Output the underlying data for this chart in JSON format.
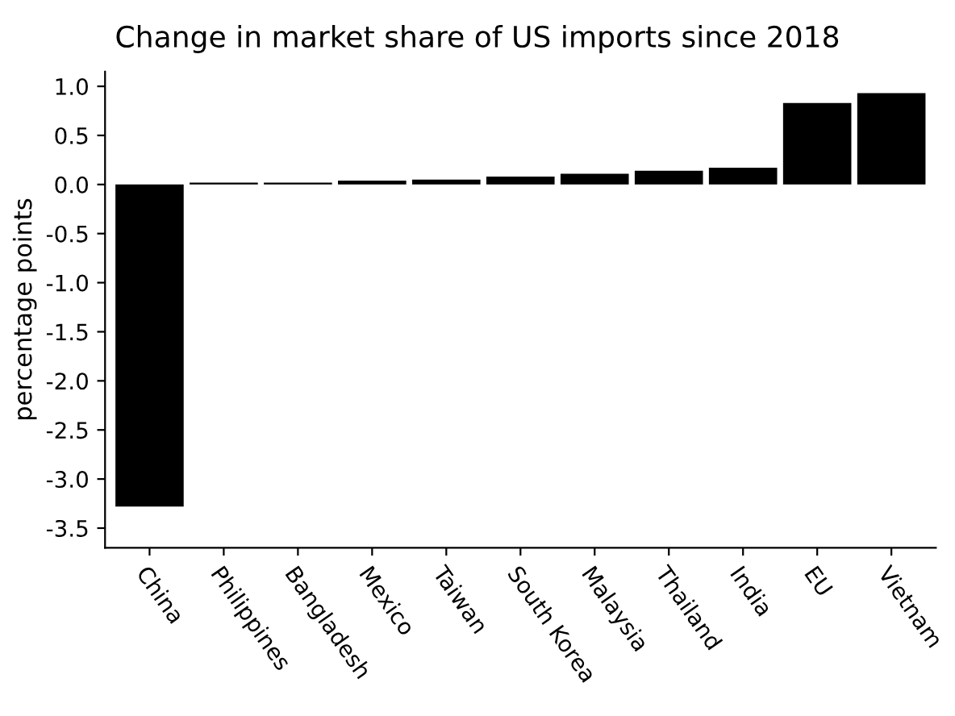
{
  "chart_data": {
    "type": "bar",
    "title": "Change in market share of US imports since 2018",
    "ylabel": "percentage points",
    "categories": [
      "China",
      "Philippines",
      "Bangladesh",
      "Mexico",
      "Taiwan",
      "South Korea",
      "Malaysia",
      "Thailand",
      "India",
      "EU",
      "Vietnam"
    ],
    "values": [
      -3.28,
      0.02,
      0.02,
      0.04,
      0.05,
      0.08,
      0.11,
      0.14,
      0.17,
      0.83,
      0.93
    ],
    "color": "#000000",
    "ylim": [
      -3.7,
      1.15
    ],
    "yticks": [
      {
        "value": -3.5,
        "label": "-3.5"
      },
      {
        "value": -3.0,
        "label": "-3.0"
      },
      {
        "value": -2.5,
        "label": "-2.5"
      },
      {
        "value": -2.0,
        "label": "-2.0"
      },
      {
        "value": -1.5,
        "label": "-1.5"
      },
      {
        "value": -1.0,
        "label": "-1.0"
      },
      {
        "value": -0.5,
        "label": "-0.5"
      },
      {
        "value": 0.0,
        "label": "0.0"
      },
      {
        "value": 0.5,
        "label": "0.5"
      },
      {
        "value": 1.0,
        "label": "1.0"
      }
    ],
    "grid": false
  }
}
